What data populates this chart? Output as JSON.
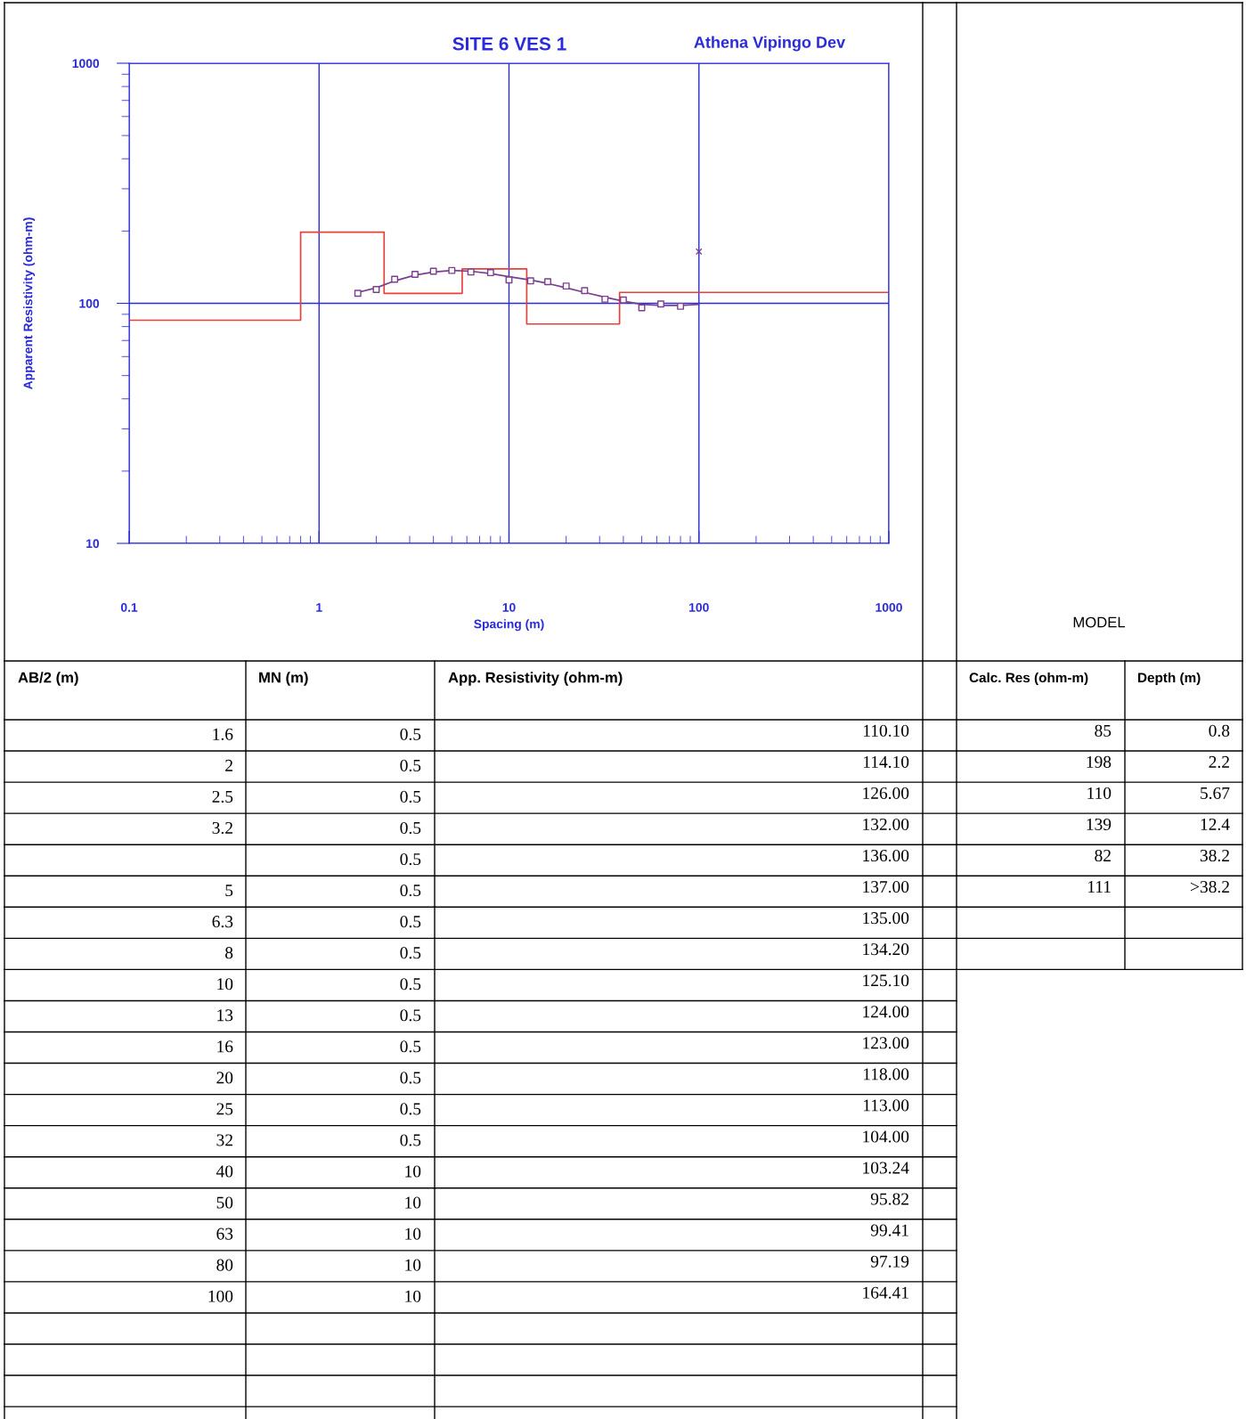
{
  "chart_data": {
    "type": "line",
    "title": "SITE 6 VES 1",
    "subtitle": "Athena Vipingo Dev",
    "xlabel": "Spacing (m)",
    "ylabel": "Apparent Resistivity (ohm-m)",
    "log": "xy",
    "xlim": [
      0.1,
      1000
    ],
    "ylim": [
      10,
      1000
    ],
    "xticks": [
      0.1,
      1,
      10,
      100,
      1000
    ],
    "yticks": [
      10,
      100,
      1000
    ],
    "grid": true,
    "legend": false,
    "series": [
      {
        "type": "step",
        "color": "#e8413c",
        "x": [
          0.1,
          0.8,
          2.2,
          5.67,
          12.4,
          38.2,
          1000
        ],
        "values": [
          85,
          198,
          110,
          139,
          82,
          111,
          111
        ]
      },
      {
        "color": "#7b3f8f",
        "marker": "none",
        "x": [
          1.6,
          2,
          2.5,
          3.2,
          4,
          5,
          6.3,
          8,
          10,
          13,
          16,
          20,
          25,
          32,
          40,
          50,
          63,
          80,
          100
        ],
        "values": [
          111,
          116,
          124,
          131,
          135,
          137,
          136,
          133,
          129,
          125,
          121,
          116,
          111,
          106,
          102,
          99,
          98,
          98,
          99
        ]
      },
      {
        "type": "scatter",
        "color": "#7b3f8f",
        "marker": "square",
        "x": [
          1.6,
          2,
          2.5,
          3.2,
          4,
          5,
          6.3,
          8,
          10,
          13,
          16,
          20,
          25,
          32,
          40,
          50,
          63,
          80
        ],
        "values": [
          110.1,
          114.1,
          126,
          132,
          136,
          137,
          135,
          134.2,
          125.1,
          124,
          123,
          118,
          113,
          104,
          103.24,
          95.82,
          99.41,
          97.19
        ]
      },
      {
        "type": "scatter",
        "color": "#7b3f8f",
        "marker": "cross",
        "x": [
          100
        ],
        "values": [
          164.41
        ]
      }
    ],
    "annotations": [
      "AB/2 (m)",
      "MN (m)",
      "App. Resistivity (ohm-m)",
      "Calc. Res (ohm-m)",
      "Depth (m)",
      "MODEL",
      "1.6",
      "2",
      "2.5",
      "3.2",
      "5",
      "6.3",
      "8",
      "10",
      "13",
      "16",
      "20",
      "25",
      "32",
      "40",
      "50",
      "63",
      "80",
      "100",
      "0.5",
      "0.5",
      "0.5",
      "0.5",
      "0.5",
      "0.5",
      "0.5",
      "0.5",
      "0.5",
      "0.5",
      "0.5",
      "0.5",
      "0.5",
      "0.5",
      "10",
      "10",
      "10",
      "10",
      "10",
      "110.10",
      "114.10",
      "126.00",
      "132.00",
      "136.00",
      "137.00",
      "135.00",
      "134.20",
      "125.10",
      "124.00",
      "123.00",
      "118.00",
      "113.00",
      "104.00",
      "103.24",
      "95.82",
      "99.41",
      "97.19",
      "164.41",
      "85",
      "198",
      "110",
      "139",
      "82",
      "111",
      "0.8",
      "2.2",
      "5.67",
      "12.4",
      "38.2",
      ">38.2"
    ]
  }
}
